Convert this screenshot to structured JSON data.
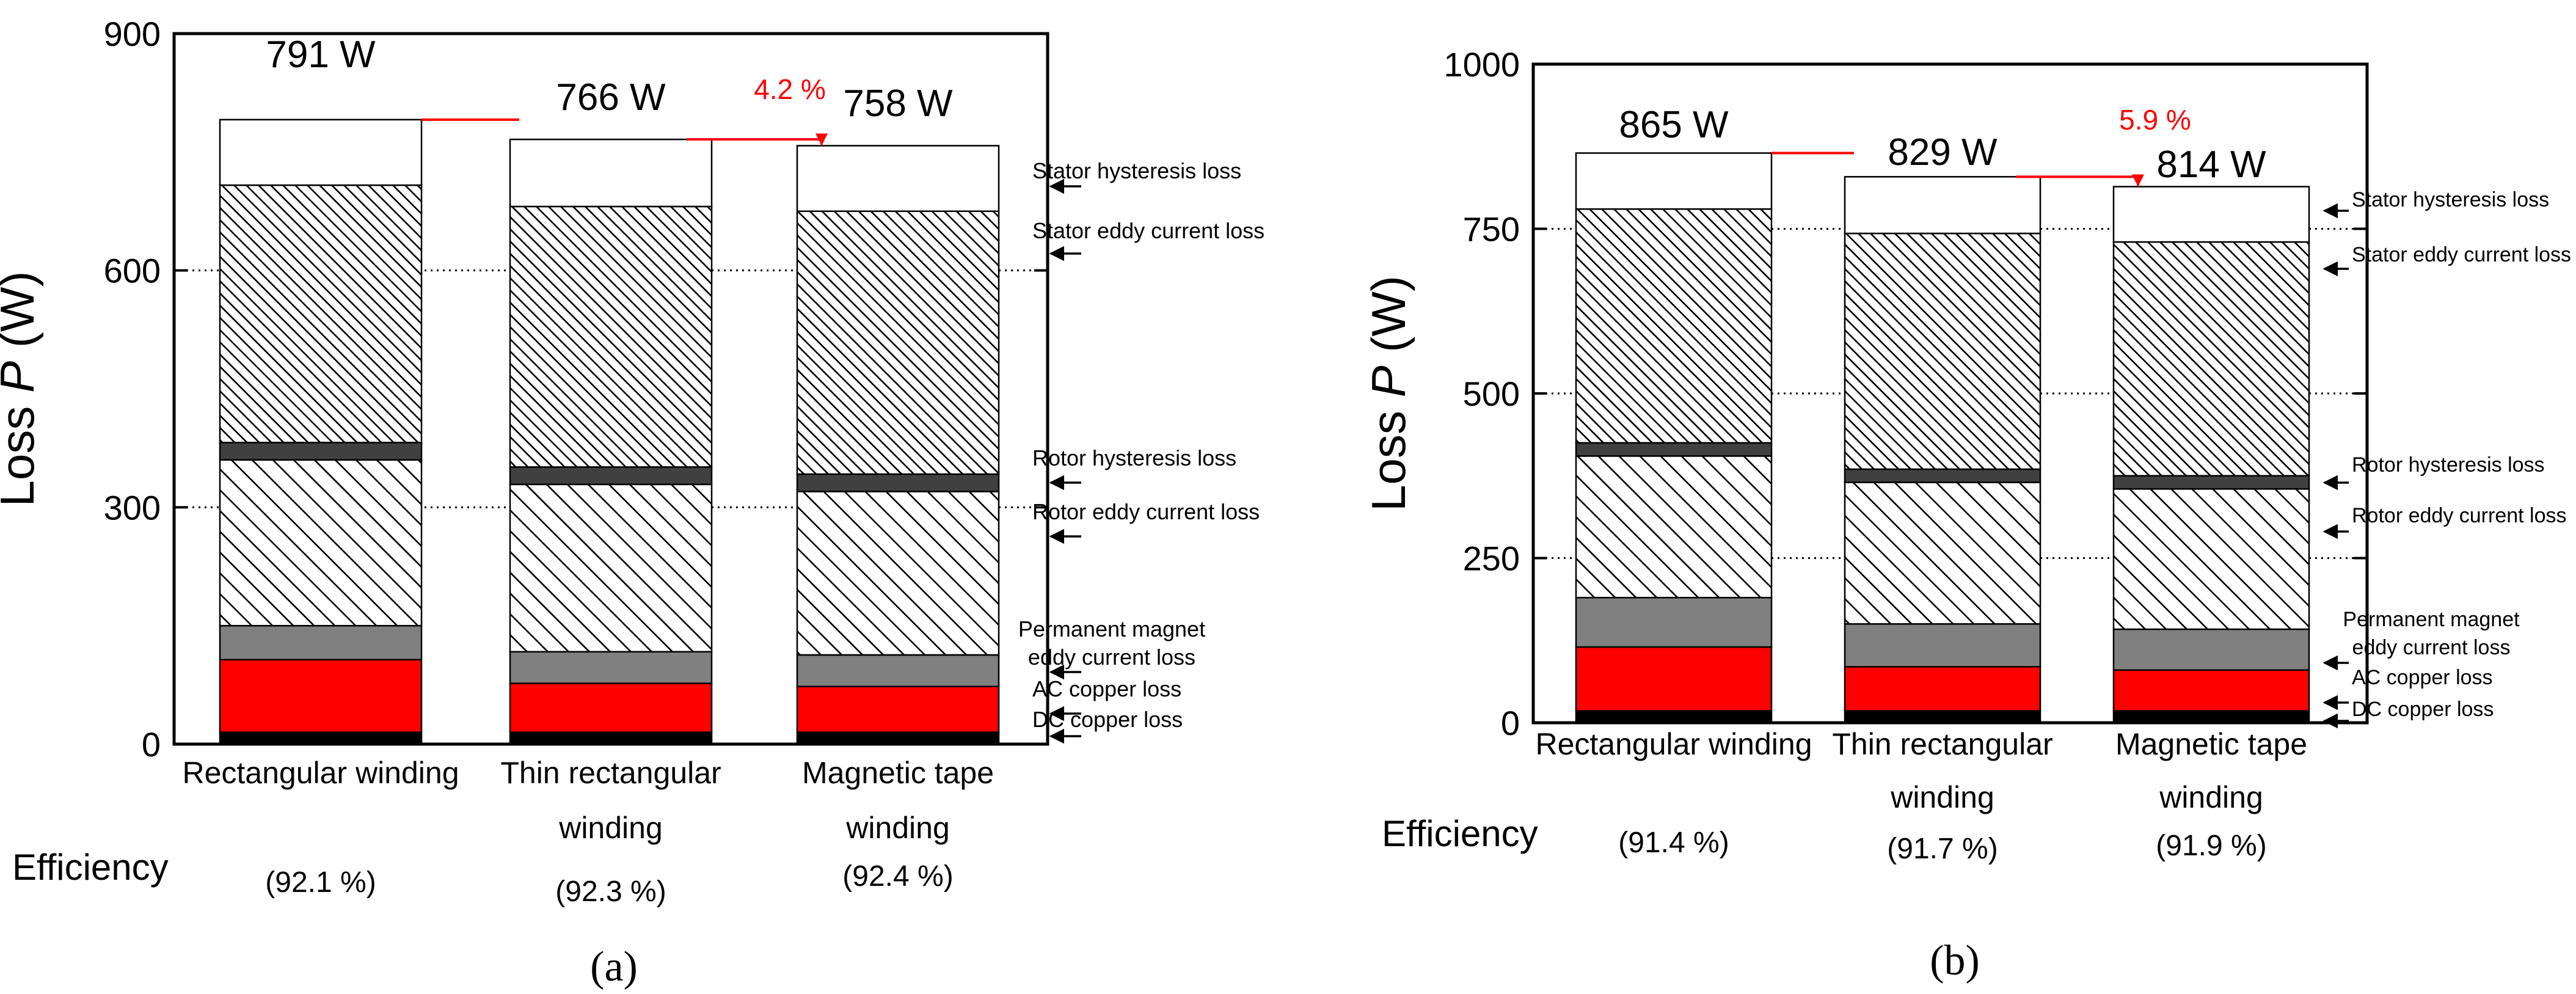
{
  "chart_data": [
    {
      "panel_label": "(a)",
      "type": "bar",
      "stacked": true,
      "ylabel_text": "Loss",
      "ylabel_var": "P",
      "ylabel_unit": "(W)",
      "ylim": [
        0,
        900
      ],
      "yticks": [
        0,
        300,
        600,
        900
      ],
      "gridlines": [
        300,
        600
      ],
      "categories": [
        {
          "lines": [
            "Rectangular winding"
          ],
          "efficiency": "(92.1 %)",
          "total_label": "791 W"
        },
        {
          "lines": [
            "Thin rectangular",
            "winding"
          ],
          "efficiency": "(92.3 %)",
          "total_label": "766 W"
        },
        {
          "lines": [
            "Magnetic tape",
            "winding"
          ],
          "efficiency": "(92.4 %)",
          "total_label": "758 W"
        }
      ],
      "efficiency_label": "Efficiency",
      "reduction_label": "4.2 %",
      "series": [
        {
          "name": "DC copper loss",
          "values": [
            15,
            15,
            15
          ]
        },
        {
          "name": "AC copper loss",
          "values": [
            92,
            62,
            58
          ]
        },
        {
          "name": "Permanent magnet eddy current loss",
          "values": [
            43,
            40,
            40
          ]
        },
        {
          "name": "Rotor eddy current loss",
          "values": [
            210,
            212,
            207
          ]
        },
        {
          "name": "Rotor hysteresis loss",
          "values": [
            22,
            22,
            22
          ]
        },
        {
          "name": "Stator eddy current loss",
          "values": [
            326,
            330,
            333
          ]
        },
        {
          "name": "Stator hysteresis loss",
          "values": [
            83,
            85,
            83
          ]
        }
      ],
      "legend": [
        {
          "lines": [
            "Stator hysteresis loss"
          ]
        },
        {
          "lines": [
            "Stator eddy current loss"
          ]
        },
        {
          "lines": [
            "Rotor hysteresis loss"
          ]
        },
        {
          "lines": [
            "Rotor eddy current loss"
          ]
        },
        {
          "lines": [
            "Permanent magnet",
            "eddy current loss"
          ]
        },
        {
          "lines": [
            "AC copper loss"
          ]
        },
        {
          "lines": [
            "DC copper loss"
          ]
        }
      ]
    },
    {
      "panel_label": "(b)",
      "type": "bar",
      "stacked": true,
      "ylabel_text": "Loss",
      "ylabel_var": "P",
      "ylabel_unit": "(W)",
      "ylim": [
        0,
        1000
      ],
      "yticks": [
        0,
        250,
        500,
        750,
        1000
      ],
      "gridlines": [
        250,
        500,
        750
      ],
      "categories": [
        {
          "lines": [
            "Rectangular winding"
          ],
          "efficiency": "(91.4 %)",
          "total_label": "865 W"
        },
        {
          "lines": [
            "Thin rectangular",
            "winding"
          ],
          "efficiency": "(91.7 %)",
          "total_label": "829 W"
        },
        {
          "lines": [
            "Magnetic tape",
            "winding"
          ],
          "efficiency": "(91.9 %)",
          "total_label": "814 W"
        }
      ],
      "efficiency_label": "Efficiency",
      "reduction_label": "5.9 %",
      "series": [
        {
          "name": "DC copper loss",
          "values": [
            18,
            18,
            18
          ]
        },
        {
          "name": "AC copper loss",
          "values": [
            97,
            67,
            62
          ]
        },
        {
          "name": "Permanent magnet eddy current loss",
          "values": [
            75,
            65,
            62
          ]
        },
        {
          "name": "Rotor eddy current loss",
          "values": [
            215,
            215,
            213
          ]
        },
        {
          "name": "Rotor hysteresis loss",
          "values": [
            20,
            20,
            20
          ]
        },
        {
          "name": "Stator eddy current loss",
          "values": [
            355,
            358,
            355
          ]
        },
        {
          "name": "Stator hysteresis loss",
          "values": [
            85,
            86,
            84
          ]
        }
      ],
      "legend": [
        {
          "lines": [
            "Stator hysteresis loss"
          ]
        },
        {
          "lines": [
            "Stator eddy current loss"
          ]
        },
        {
          "lines": [
            "Rotor hysteresis loss"
          ]
        },
        {
          "lines": [
            "Rotor eddy current loss"
          ]
        },
        {
          "lines": [
            "Permanent magnet",
            "eddy current loss"
          ]
        },
        {
          "lines": [
            "AC copper loss"
          ]
        },
        {
          "lines": [
            "DC copper loss"
          ]
        }
      ]
    }
  ]
}
